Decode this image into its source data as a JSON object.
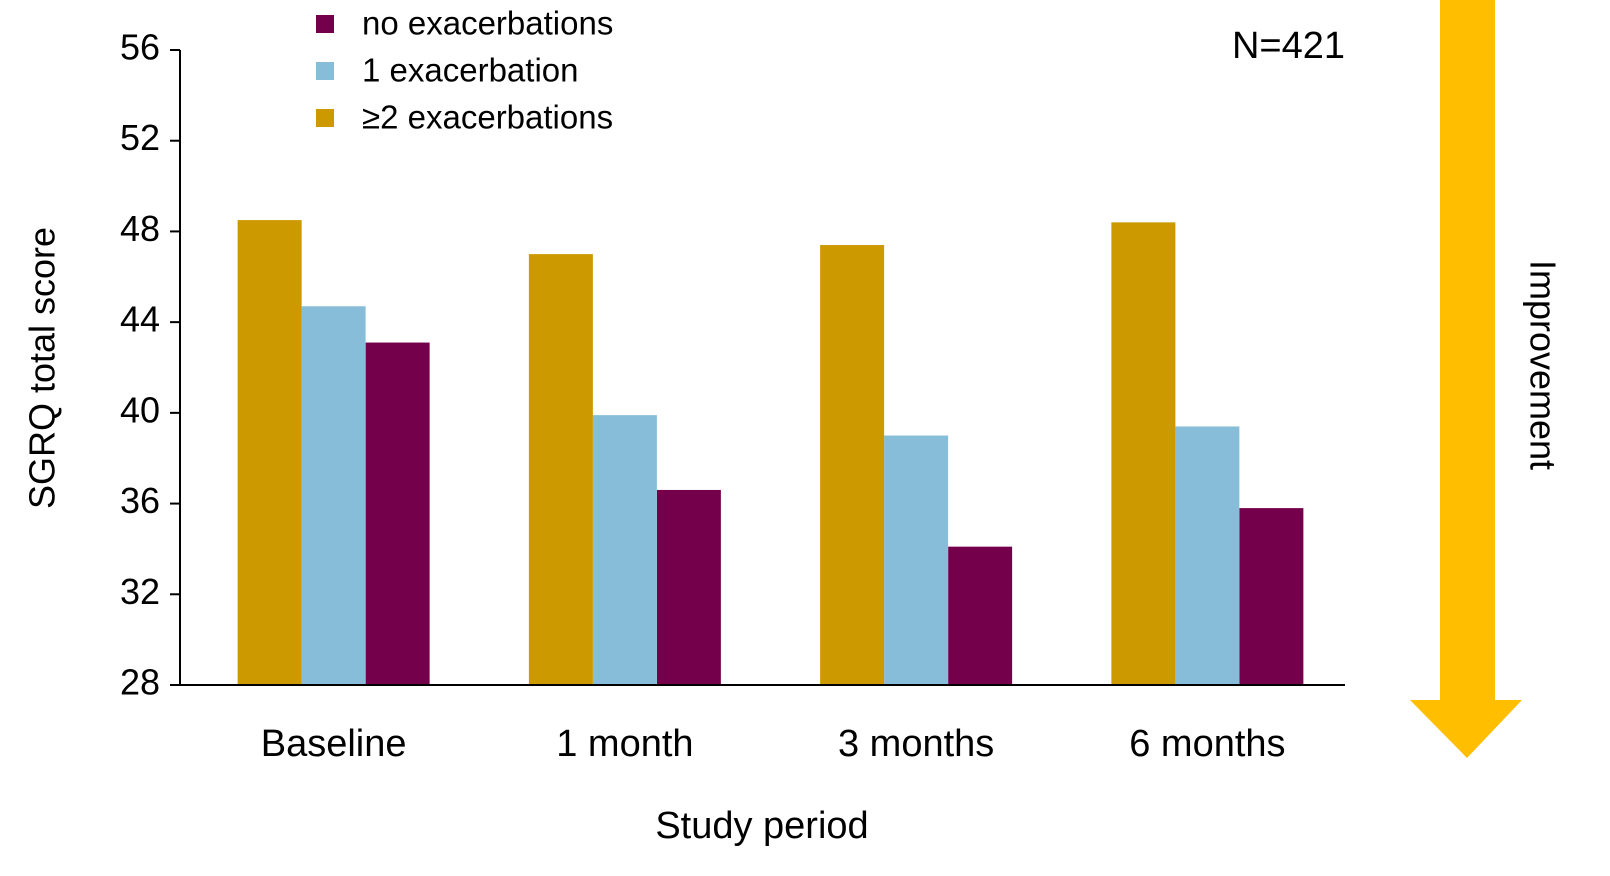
{
  "chart_data": {
    "type": "bar",
    "categories": [
      "Baseline",
      "1 month",
      "3 months",
      "6 months"
    ],
    "series": [
      {
        "name": "no exacerbations",
        "color": "#74004b",
        "values": [
          43.1,
          36.6,
          34.1,
          35.8
        ]
      },
      {
        "name": "1 exacerbation",
        "color": "#87bdd8",
        "values": [
          44.7,
          39.9,
          39.0,
          39.4
        ]
      },
      {
        "name": "≥2 exacerbations",
        "color": "#cc9900",
        "values": [
          48.5,
          47.0,
          47.4,
          48.4
        ]
      }
    ],
    "ylim": [
      28,
      56
    ],
    "yticks": [
      28,
      32,
      36,
      40,
      44,
      48,
      52,
      56
    ],
    "y_label": "SGRQ total score",
    "x_label": "Study period",
    "annotations": [
      "N=421",
      "Improvement"
    ],
    "arrow_color": "#ffbf00",
    "legend": "top-left",
    "grid": false
  }
}
